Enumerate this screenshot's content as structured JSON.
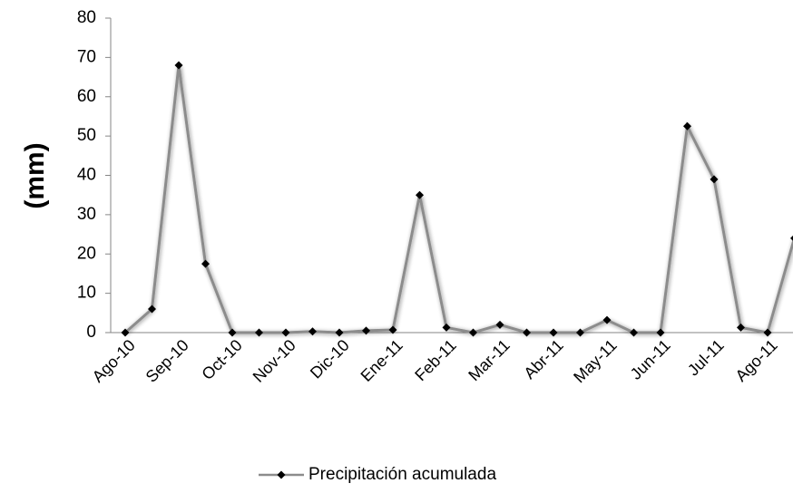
{
  "chart_data": {
    "type": "line",
    "y_label": "(mm)",
    "categories": [
      "Ago-10",
      null,
      "Sep-10",
      null,
      "Oct-10",
      null,
      "Nov-10",
      null,
      "Dic-10",
      null,
      "Ene-11",
      null,
      "Feb-11",
      null,
      "Mar-11",
      null,
      "Abr-11",
      null,
      "May-11",
      null,
      "Jun-11",
      null,
      "Jul-11",
      null,
      "Ago-11",
      null
    ],
    "series": [
      {
        "name": "Precipitación acumulada",
        "color": "#8c8c8c",
        "marker_color": "#000000",
        "values": [
          0,
          6,
          68,
          17.5,
          0,
          0,
          0,
          0.3,
          0,
          0.5,
          0.7,
          35,
          1.3,
          0,
          2,
          0,
          0,
          0,
          3.2,
          0,
          0,
          52.5,
          39,
          1.3,
          0,
          24
        ]
      }
    ],
    "ylim": [
      0,
      80
    ],
    "yticks": [
      0,
      10,
      20,
      30,
      40,
      50,
      60,
      70,
      80
    ],
    "grid": false,
    "legend": "bottom"
  }
}
